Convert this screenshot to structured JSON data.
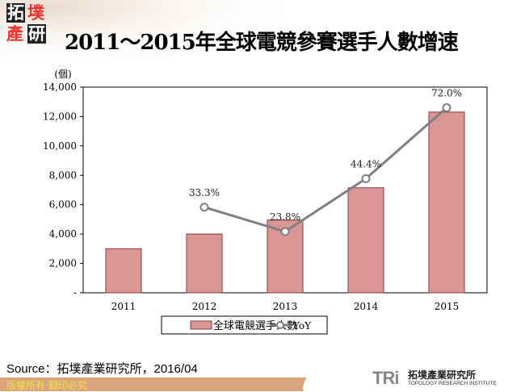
{
  "logo_text": "拓墣產研",
  "title": "2011～2015年全球電競參賽選手人數增速",
  "chart_data": {
    "type": "bar+line",
    "title": "2011～2015年全球電競參賽選手人數增速",
    "ylabel": "(個)",
    "categories": [
      "2011",
      "2012",
      "2013",
      "2014",
      "2015"
    ],
    "ylim": [
      0,
      14000
    ],
    "yticks": [
      "-",
      "2,000",
      "4,000",
      "6,000",
      "8,000",
      "10,000",
      "12,000",
      "14,000"
    ],
    "ytick_values": [
      0,
      2000,
      4000,
      6000,
      8000,
      10000,
      12000,
      14000
    ],
    "y2lim": [
      0,
      80
    ],
    "series": [
      {
        "name": "全球電競選手人數",
        "type": "bar",
        "values": [
          3000,
          4000,
          4950,
          7150,
          12300
        ],
        "color": "#d99694"
      },
      {
        "name": "YoY",
        "type": "line",
        "axis": "secondary",
        "values": [
          null,
          33.3,
          23.8,
          44.4,
          72.0
        ],
        "labels": [
          "",
          "33.3%",
          "23.8%",
          "44.4%",
          "72.0%"
        ],
        "color": "#7f7f7f"
      }
    ],
    "legend": "bottom",
    "grid": false
  },
  "source": "Source：拓墣產業研究所，2016/04",
  "footer": "版權所有‧翻印必究",
  "brand": {
    "mark": "TRi",
    "cn": "拓墣產業研究所",
    "en": "TOPOLOGY RESEARCH INSTITUTE"
  }
}
